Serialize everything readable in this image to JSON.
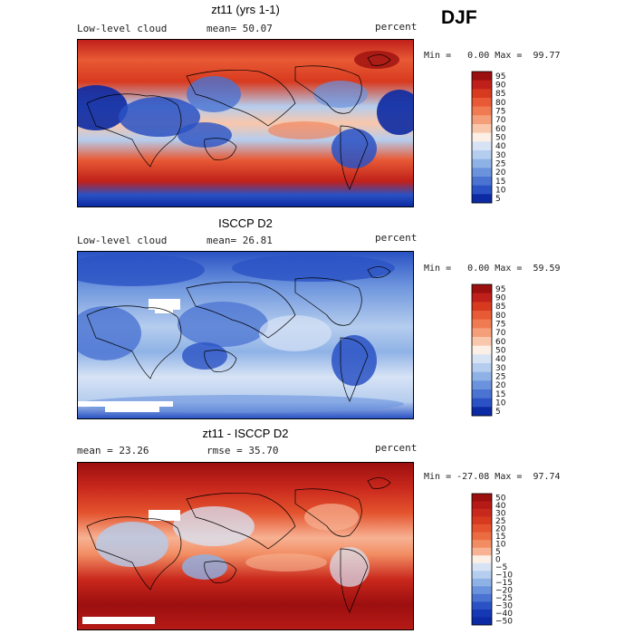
{
  "season": "DJF",
  "chart_data": [
    {
      "type": "heatmap",
      "title": "zt11 (yrs 1-1)",
      "variable": "Low-level cloud",
      "stat_label": "mean",
      "stat_value": "50.07",
      "units": "percent",
      "min_label": "Min =",
      "min_value": "0.00",
      "max_label": "Max =",
      "max_value": "99.77",
      "colorbar_levels": [
        "95",
        "90",
        "85",
        "80",
        "75",
        "70",
        "60",
        "50",
        "40",
        "30",
        "25",
        "20",
        "15",
        "10",
        "5"
      ],
      "colorbar_colors": [
        "#9c0f0f",
        "#c0201a",
        "#d83a1f",
        "#e85a35",
        "#f07b52",
        "#f59e7a",
        "#f9c7ab",
        "#fcefe6",
        "#d7e3f5",
        "#b5cdee",
        "#8fb2e6",
        "#6b93dd",
        "#4a73d2",
        "#2a52c4",
        "#0c2aa3"
      ]
    },
    {
      "type": "heatmap",
      "title": "ISCCP D2",
      "variable": "Low-level cloud",
      "stat_label": "mean",
      "stat_value": "26.81",
      "units": "percent",
      "min_label": "Min =",
      "min_value": "0.00",
      "max_label": "Max =",
      "max_value": "59.59",
      "colorbar_levels": [
        "95",
        "90",
        "85",
        "80",
        "75",
        "70",
        "60",
        "50",
        "40",
        "30",
        "25",
        "20",
        "15",
        "10",
        "5"
      ],
      "colorbar_colors": [
        "#9c0f0f",
        "#c0201a",
        "#d83a1f",
        "#e85a35",
        "#f07b52",
        "#f59e7a",
        "#f9c7ab",
        "#fcefe6",
        "#d7e3f5",
        "#b5cdee",
        "#8fb2e6",
        "#6b93dd",
        "#4a73d2",
        "#2a52c4",
        "#0c2aa3"
      ]
    },
    {
      "type": "heatmap",
      "title": "zt11 - ISCCP D2",
      "stat_label": "mean =",
      "stat_value": "23.26",
      "stat2_label": "rmse =",
      "stat2_value": "35.70",
      "units": "percent",
      "min_label": "Min =",
      "min_value": "-27.08",
      "max_label": "Max =",
      "max_value": "97.74",
      "colorbar_levels": [
        "50",
        "40",
        "30",
        "25",
        "20",
        "15",
        "10",
        "5",
        "0",
        "−5",
        "−10",
        "−15",
        "−20",
        "−25",
        "−30",
        "−40",
        "−50"
      ],
      "colorbar_colors": [
        "#9c0f0f",
        "#b51a16",
        "#c9281c",
        "#d83a1f",
        "#e4532e",
        "#ec6c42",
        "#f28c62",
        "#f7b293",
        "#fcefe6",
        "#d7e3f5",
        "#b5cdee",
        "#8fb2e6",
        "#6b93dd",
        "#4a73d2",
        "#2a52c4",
        "#1538b5",
        "#0c2aa3"
      ]
    }
  ]
}
